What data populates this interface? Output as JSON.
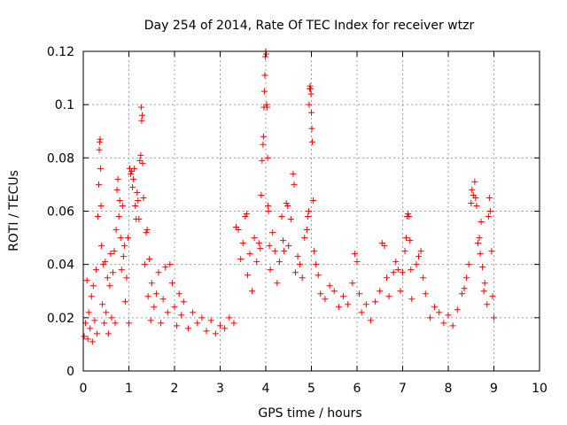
{
  "chart_data": {
    "type": "scatter",
    "title": "Day 254 of 2014, Rate Of TEC Index for receiver wtzr",
    "xlabel": "GPS time / hours",
    "ylabel": "ROTI / TECUs",
    "xlim": [
      0,
      10
    ],
    "ylim": [
      0,
      0.12
    ],
    "x_ticks": [
      0,
      1,
      2,
      3,
      4,
      5,
      6,
      7,
      8,
      9,
      10
    ],
    "x_tick_labels": [
      "0",
      "1",
      "2",
      "3",
      "4",
      "5",
      "6",
      "7",
      "8",
      "9",
      "10"
    ],
    "y_ticks": [
      0,
      0.02,
      0.04,
      0.06,
      0.08,
      0.1,
      0.12
    ],
    "y_tick_labels": [
      "0",
      "0.02",
      "0.04",
      "0.06",
      "0.08",
      "0.1",
      "0.12"
    ],
    "grid": true,
    "marker": "+",
    "marker_color": "#ff0000",
    "series": [
      {
        "name": "ROTI",
        "points": [
          [
            0.02,
            0.013
          ],
          [
            0.05,
            0.018
          ],
          [
            0.08,
            0.034
          ],
          [
            0.1,
            0.012
          ],
          [
            0.12,
            0.022
          ],
          [
            0.15,
            0.016
          ],
          [
            0.18,
            0.028
          ],
          [
            0.2,
            0.011
          ],
          [
            0.22,
            0.032
          ],
          [
            0.25,
            0.019
          ],
          [
            0.28,
            0.038
          ],
          [
            0.3,
            0.014
          ],
          [
            0.32,
            0.058
          ],
          [
            0.34,
            0.07
          ],
          [
            0.35,
            0.083
          ],
          [
            0.36,
            0.086
          ],
          [
            0.37,
            0.087
          ],
          [
            0.38,
            0.076
          ],
          [
            0.39,
            0.062
          ],
          [
            0.4,
            0.047
          ],
          [
            0.42,
            0.025
          ],
          [
            0.44,
            0.04
          ],
          [
            0.46,
            0.018
          ],
          [
            0.48,
            0.041
          ],
          [
            0.5,
            0.022
          ],
          [
            0.53,
            0.035
          ],
          [
            0.55,
            0.014
          ],
          [
            0.58,
            0.032
          ],
          [
            0.6,
            0.044
          ],
          [
            0.62,
            0.02
          ],
          [
            0.65,
            0.037
          ],
          [
            0.68,
            0.045
          ],
          [
            0.7,
            0.018
          ],
          [
            0.72,
            0.053
          ],
          [
            0.74,
            0.068
          ],
          [
            0.76,
            0.072
          ],
          [
            0.78,
            0.058
          ],
          [
            0.8,
            0.064
          ],
          [
            0.82,
            0.05
          ],
          [
            0.84,
            0.038
          ],
          [
            0.86,
            0.062
          ],
          [
            0.88,
            0.043
          ],
          [
            0.9,
            0.047
          ],
          [
            0.92,
            0.026
          ],
          [
            0.95,
            0.035
          ],
          [
            0.98,
            0.05
          ],
          [
            1.0,
            0.018
          ],
          [
            1.02,
            0.076
          ],
          [
            1.04,
            0.074
          ],
          [
            1.06,
            0.075
          ],
          [
            1.08,
            0.069
          ],
          [
            1.1,
            0.072
          ],
          [
            1.12,
            0.076
          ],
          [
            1.14,
            0.062
          ],
          [
            1.16,
            0.057
          ],
          [
            1.18,
            0.067
          ],
          [
            1.2,
            0.064
          ],
          [
            1.22,
            0.057
          ],
          [
            1.24,
            0.079
          ],
          [
            1.26,
            0.081
          ],
          [
            1.27,
            0.099
          ],
          [
            1.28,
            0.094
          ],
          [
            1.29,
            0.096
          ],
          [
            1.3,
            0.078
          ],
          [
            1.32,
            0.065
          ],
          [
            1.35,
            0.04
          ],
          [
            1.38,
            0.052
          ],
          [
            1.4,
            0.053
          ],
          [
            1.42,
            0.028
          ],
          [
            1.45,
            0.042
          ],
          [
            1.48,
            0.019
          ],
          [
            1.5,
            0.033
          ],
          [
            1.55,
            0.024
          ],
          [
            1.6,
            0.029
          ],
          [
            1.65,
            0.037
          ],
          [
            1.7,
            0.018
          ],
          [
            1.75,
            0.027
          ],
          [
            1.8,
            0.039
          ],
          [
            1.85,
            0.022
          ],
          [
            1.9,
            0.04
          ],
          [
            1.95,
            0.033
          ],
          [
            2.0,
            0.024
          ],
          [
            2.05,
            0.017
          ],
          [
            2.1,
            0.029
          ],
          [
            2.15,
            0.021
          ],
          [
            2.2,
            0.026
          ],
          [
            2.3,
            0.016
          ],
          [
            2.4,
            0.022
          ],
          [
            2.5,
            0.018
          ],
          [
            2.6,
            0.02
          ],
          [
            2.7,
            0.015
          ],
          [
            2.8,
            0.019
          ],
          [
            2.9,
            0.014
          ],
          [
            3.0,
            0.017
          ],
          [
            3.1,
            0.016
          ],
          [
            3.2,
            0.02
          ],
          [
            3.3,
            0.018
          ],
          [
            3.35,
            0.054
          ],
          [
            3.4,
            0.053
          ],
          [
            3.45,
            0.042
          ],
          [
            3.5,
            0.048
          ],
          [
            3.55,
            0.058
          ],
          [
            3.58,
            0.059
          ],
          [
            3.6,
            0.036
          ],
          [
            3.65,
            0.044
          ],
          [
            3.7,
            0.03
          ],
          [
            3.75,
            0.05
          ],
          [
            3.8,
            0.041
          ],
          [
            3.85,
            0.048
          ],
          [
            3.88,
            0.046
          ],
          [
            3.9,
            0.066
          ],
          [
            3.92,
            0.079
          ],
          [
            3.94,
            0.085
          ],
          [
            3.95,
            0.088
          ],
          [
            3.96,
            0.099
          ],
          [
            3.97,
            0.105
          ],
          [
            3.98,
            0.111
          ],
          [
            3.99,
            0.118
          ],
          [
            4.0,
            0.12
          ],
          [
            4.01,
            0.119
          ],
          [
            4.02,
            0.1
          ],
          [
            4.03,
            0.099
          ],
          [
            4.04,
            0.08
          ],
          [
            4.05,
            0.062
          ],
          [
            4.06,
            0.06
          ],
          [
            4.08,
            0.047
          ],
          [
            4.1,
            0.038
          ],
          [
            4.15,
            0.052
          ],
          [
            4.2,
            0.045
          ],
          [
            4.25,
            0.033
          ],
          [
            4.3,
            0.041
          ],
          [
            4.35,
            0.058
          ],
          [
            4.38,
            0.049
          ],
          [
            4.4,
            0.045
          ],
          [
            4.45,
            0.063
          ],
          [
            4.48,
            0.062
          ],
          [
            4.5,
            0.047
          ],
          [
            4.55,
            0.057
          ],
          [
            4.6,
            0.074
          ],
          [
            4.62,
            0.07
          ],
          [
            4.65,
            0.037
          ],
          [
            4.7,
            0.043
          ],
          [
            4.75,
            0.04
          ],
          [
            4.8,
            0.035
          ],
          [
            4.85,
            0.05
          ],
          [
            4.9,
            0.053
          ],
          [
            4.92,
            0.058
          ],
          [
            4.94,
            0.06
          ],
          [
            4.95,
            0.1
          ],
          [
            4.96,
            0.106
          ],
          [
            4.97,
            0.107
          ],
          [
            4.98,
            0.106
          ],
          [
            4.99,
            0.104
          ],
          [
            5.0,
            0.097
          ],
          [
            5.01,
            0.091
          ],
          [
            5.02,
            0.086
          ],
          [
            5.04,
            0.064
          ],
          [
            5.06,
            0.045
          ],
          [
            5.1,
            0.04
          ],
          [
            5.15,
            0.036
          ],
          [
            5.2,
            0.029
          ],
          [
            5.3,
            0.027
          ],
          [
            5.4,
            0.032
          ],
          [
            5.5,
            0.03
          ],
          [
            5.6,
            0.024
          ],
          [
            5.7,
            0.028
          ],
          [
            5.8,
            0.025
          ],
          [
            5.9,
            0.033
          ],
          [
            5.95,
            0.044
          ],
          [
            6.0,
            0.041
          ],
          [
            6.05,
            0.029
          ],
          [
            6.1,
            0.022
          ],
          [
            6.2,
            0.025
          ],
          [
            6.3,
            0.019
          ],
          [
            6.4,
            0.026
          ],
          [
            6.5,
            0.03
          ],
          [
            6.55,
            0.048
          ],
          [
            6.6,
            0.047
          ],
          [
            6.65,
            0.035
          ],
          [
            6.7,
            0.028
          ],
          [
            6.8,
            0.037
          ],
          [
            6.85,
            0.041
          ],
          [
            6.9,
            0.038
          ],
          [
            6.95,
            0.03
          ],
          [
            7.0,
            0.037
          ],
          [
            7.05,
            0.045
          ],
          [
            7.08,
            0.05
          ],
          [
            7.1,
            0.058
          ],
          [
            7.12,
            0.059
          ],
          [
            7.14,
            0.058
          ],
          [
            7.16,
            0.049
          ],
          [
            7.18,
            0.038
          ],
          [
            7.2,
            0.027
          ],
          [
            7.3,
            0.04
          ],
          [
            7.35,
            0.043
          ],
          [
            7.4,
            0.045
          ],
          [
            7.45,
            0.035
          ],
          [
            7.5,
            0.029
          ],
          [
            7.6,
            0.02
          ],
          [
            7.7,
            0.024
          ],
          [
            7.8,
            0.022
          ],
          [
            7.9,
            0.018
          ],
          [
            8.0,
            0.021
          ],
          [
            8.1,
            0.017
          ],
          [
            8.2,
            0.023
          ],
          [
            8.3,
            0.029
          ],
          [
            8.35,
            0.031
          ],
          [
            8.4,
            0.035
          ],
          [
            8.45,
            0.04
          ],
          [
            8.5,
            0.063
          ],
          [
            8.52,
            0.068
          ],
          [
            8.55,
            0.066
          ],
          [
            8.58,
            0.071
          ],
          [
            8.6,
            0.065
          ],
          [
            8.62,
            0.062
          ],
          [
            8.65,
            0.048
          ],
          [
            8.68,
            0.05
          ],
          [
            8.7,
            0.044
          ],
          [
            8.72,
            0.056
          ],
          [
            8.75,
            0.039
          ],
          [
            8.78,
            0.03
          ],
          [
            8.8,
            0.033
          ],
          [
            8.85,
            0.025
          ],
          [
            8.88,
            0.058
          ],
          [
            8.9,
            0.065
          ],
          [
            8.92,
            0.06
          ],
          [
            8.95,
            0.045
          ],
          [
            8.97,
            0.028
          ],
          [
            9.0,
            0.02
          ]
        ]
      }
    ]
  }
}
